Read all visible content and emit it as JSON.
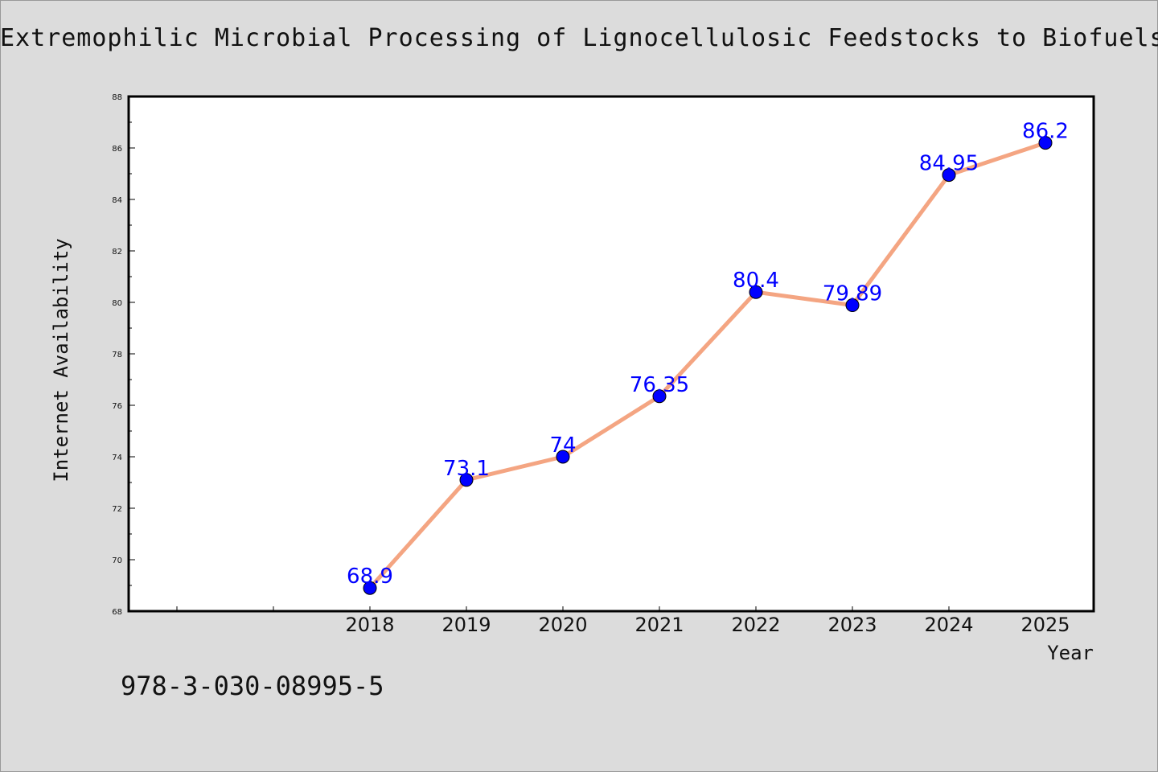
{
  "chart_data": {
    "type": "line",
    "title": "Extremophilic Microbial Processing of Lignocellulosic Feedstocks to Biofuels, Va",
    "xlabel": "Year",
    "ylabel": "Internet Availability",
    "x": [
      "2018",
      "2019",
      "2020",
      "2021",
      "2022",
      "2023",
      "2024",
      "2025"
    ],
    "series": [
      {
        "values": [
          68.9,
          73.1,
          74,
          76.35,
          80.4,
          79.89,
          84.95,
          86.2
        ],
        "labels": [
          "68.9",
          "73.1",
          "74",
          "76.35",
          "80.4",
          "79.89",
          "84.95",
          "86.2"
        ]
      }
    ],
    "ylim": [
      68,
      88
    ],
    "yticks": [
      "68",
      "70",
      "72",
      "74",
      "76",
      "78",
      "80",
      "82",
      "84",
      "86",
      "88"
    ],
    "grid": false,
    "line_color": "#f4a582",
    "marker_color": "#0000ff",
    "label_color": "#0000ff"
  },
  "footnote": "978-3-030-08995-5"
}
